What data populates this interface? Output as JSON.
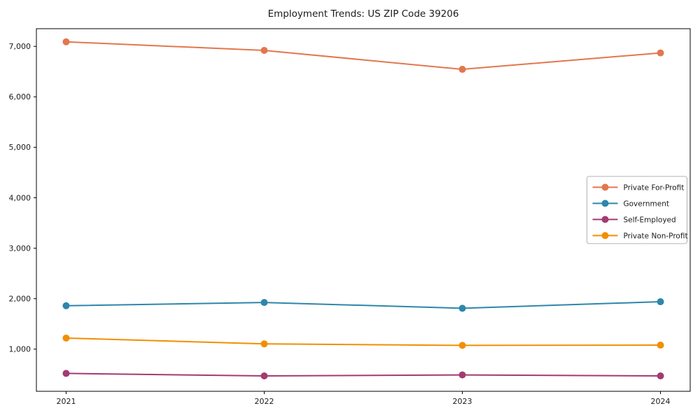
{
  "title": "Employment Trends: US ZIP Code 39206",
  "chart_data": {
    "type": "line",
    "title": "Employment Trends: US ZIP Code 39206",
    "xlabel": "",
    "ylabel": "",
    "x": [
      2021,
      2022,
      2023,
      2024
    ],
    "categories": [
      "2021",
      "2022",
      "2023",
      "2024"
    ],
    "series": [
      {
        "name": "Private For-Profit",
        "color": "#E2774D",
        "values": [
          7090,
          6920,
          6545,
          6870
        ]
      },
      {
        "name": "Government",
        "color": "#2E86AB",
        "values": [
          1860,
          1925,
          1810,
          1940
        ]
      },
      {
        "name": "Self-Employed",
        "color": "#A23B72",
        "values": [
          520,
          470,
          490,
          470
        ]
      },
      {
        "name": "Private Non-Profit",
        "color": "#F18F01",
        "values": [
          1220,
          1105,
          1075,
          1080
        ]
      }
    ],
    "xlim": [
      2020.85,
      2024.15
    ],
    "ylim": [
      165,
      7350
    ],
    "yticks": [
      1000,
      2000,
      3000,
      4000,
      5000,
      6000,
      7000
    ],
    "ytick_labels": [
      "1,000",
      "2,000",
      "3,000",
      "4,000",
      "5,000",
      "6,000",
      "7,000"
    ],
    "xtick_labels": [
      "2021",
      "2022",
      "2023",
      "2024"
    ],
    "grid": false,
    "marker": "o",
    "legend_position": "center right",
    "legend_border_color": "#b3b3b3",
    "spine_color": "#000000",
    "background_color": "#ffffff"
  }
}
